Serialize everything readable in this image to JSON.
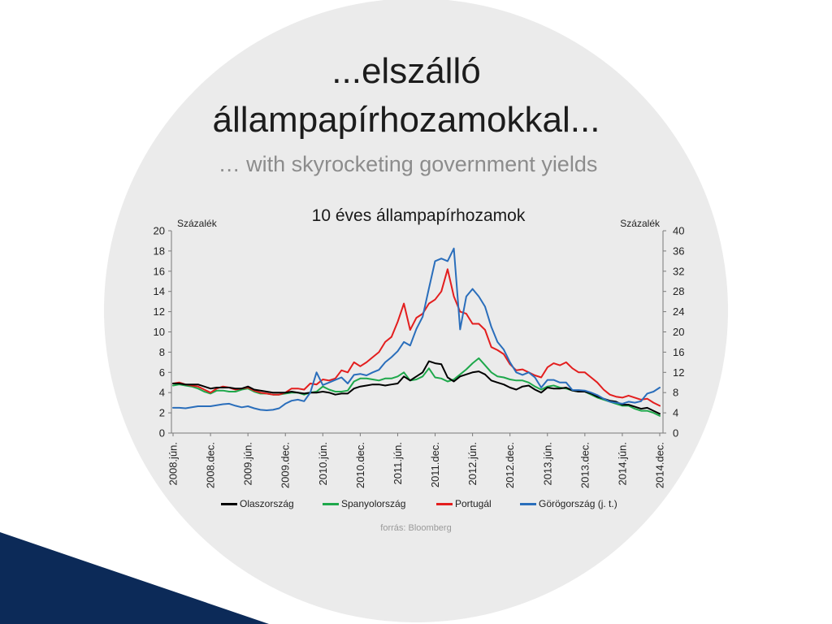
{
  "slide": {
    "title_line1": "...elszálló",
    "title_line2": "állampapírhozamokkal...",
    "subtitle": "… with skyrocketing government yields",
    "source": "forrás: Bloomberg"
  },
  "colors": {
    "background": "#ffffff",
    "circle": "#ebebeb",
    "accent": "#0c2a58"
  },
  "chart_data": {
    "type": "line",
    "title": "10 éves állampapírhozamok",
    "xlabel": "",
    "ylabel_left": "Százalék",
    "ylabel_right": "Százalék",
    "ylim_left": [
      0,
      20
    ],
    "ylim_right": [
      0,
      40
    ],
    "yticks_left": [
      0,
      2,
      4,
      6,
      8,
      10,
      12,
      14,
      16,
      18,
      20
    ],
    "yticks_right": [
      0,
      4,
      8,
      12,
      16,
      20,
      24,
      28,
      32,
      36,
      40
    ],
    "xticks": [
      "2008-06",
      "2008-12",
      "2009-06",
      "2009-12",
      "2010-06",
      "2010-12",
      "2011-06",
      "2011-12",
      "2012-06",
      "2012-12",
      "2013-06",
      "2013-12",
      "2014-06",
      "2014-12"
    ],
    "xtick_labels": [
      "2008.jún.",
      "2008.dec.",
      "2009.jún.",
      "2009.dec.",
      "2010.jún.",
      "2010.dec.",
      "2011.jún.",
      "2011.dec.",
      "2012.jún.",
      "2012.dec.",
      "2013.jún.",
      "2013.dec.",
      "2014.jún.",
      "2014.dec."
    ],
    "grid": false,
    "legend_position": "bottom",
    "x": [
      "2008-06",
      "2008-07",
      "2008-08",
      "2008-09",
      "2008-10",
      "2008-11",
      "2008-12",
      "2009-01",
      "2009-02",
      "2009-03",
      "2009-04",
      "2009-05",
      "2009-06",
      "2009-07",
      "2009-08",
      "2009-09",
      "2009-10",
      "2009-11",
      "2009-12",
      "2010-01",
      "2010-02",
      "2010-03",
      "2010-04",
      "2010-05",
      "2010-06",
      "2010-07",
      "2010-08",
      "2010-09",
      "2010-10",
      "2010-11",
      "2010-12",
      "2011-01",
      "2011-02",
      "2011-03",
      "2011-04",
      "2011-05",
      "2011-06",
      "2011-07",
      "2011-08",
      "2011-09",
      "2011-10",
      "2011-11",
      "2011-12",
      "2012-01",
      "2012-02",
      "2012-03",
      "2012-04",
      "2012-05",
      "2012-06",
      "2012-07",
      "2012-08",
      "2012-09",
      "2012-10",
      "2012-11",
      "2012-12",
      "2013-01",
      "2013-02",
      "2013-03",
      "2013-04",
      "2013-05",
      "2013-06",
      "2013-07",
      "2013-08",
      "2013-09",
      "2013-10",
      "2013-11",
      "2013-12",
      "2014-01",
      "2014-02",
      "2014-03",
      "2014-04",
      "2014-05",
      "2014-06",
      "2014-07",
      "2014-08",
      "2014-09",
      "2014-10",
      "2014-11",
      "2014-12"
    ],
    "series": [
      {
        "name": "Olaszország",
        "color": "#000000",
        "axis": "left",
        "values": [
          4.9,
          4.9,
          4.8,
          4.8,
          4.8,
          4.6,
          4.4,
          4.5,
          4.5,
          4.5,
          4.4,
          4.4,
          4.6,
          4.3,
          4.2,
          4.1,
          4.0,
          4.0,
          4.0,
          4.1,
          4.0,
          3.9,
          4.0,
          4.0,
          4.1,
          4.0,
          3.8,
          3.9,
          3.9,
          4.4,
          4.6,
          4.7,
          4.8,
          4.8,
          4.7,
          4.8,
          4.9,
          5.6,
          5.2,
          5.6,
          6.0,
          7.1,
          6.9,
          6.8,
          5.5,
          5.1,
          5.6,
          5.8,
          6.0,
          6.1,
          5.8,
          5.2,
          5.0,
          4.8,
          4.5,
          4.3,
          4.6,
          4.7,
          4.3,
          4.0,
          4.5,
          4.4,
          4.4,
          4.5,
          4.2,
          4.1,
          4.1,
          3.9,
          3.6,
          3.4,
          3.2,
          3.1,
          2.8,
          2.8,
          2.6,
          2.4,
          2.5,
          2.2,
          1.9
        ]
      },
      {
        "name": "Spanyolország",
        "color": "#1ea84b",
        "axis": "left",
        "values": [
          4.7,
          4.8,
          4.7,
          4.6,
          4.4,
          4.1,
          3.9,
          4.2,
          4.2,
          4.1,
          4.1,
          4.3,
          4.4,
          4.1,
          3.9,
          3.9,
          3.8,
          3.8,
          3.9,
          4.0,
          4.0,
          3.8,
          4.0,
          4.1,
          4.6,
          4.3,
          4.1,
          4.1,
          4.2,
          5.1,
          5.4,
          5.4,
          5.3,
          5.2,
          5.4,
          5.4,
          5.6,
          6.0,
          5.2,
          5.3,
          5.6,
          6.4,
          5.5,
          5.4,
          5.1,
          5.3,
          5.8,
          6.3,
          6.9,
          7.4,
          6.7,
          6.0,
          5.6,
          5.5,
          5.3,
          5.2,
          5.2,
          5.0,
          4.6,
          4.3,
          4.6,
          4.7,
          4.5,
          4.4,
          4.2,
          4.1,
          4.1,
          3.8,
          3.5,
          3.3,
          3.1,
          2.9,
          2.7,
          2.7,
          2.4,
          2.2,
          2.2,
          2.0,
          1.7
        ]
      },
      {
        "name": "Portugál",
        "color": "#e31e1e",
        "axis": "left",
        "values": [
          4.9,
          5.0,
          4.8,
          4.7,
          4.6,
          4.3,
          4.0,
          4.4,
          4.6,
          4.5,
          4.3,
          4.4,
          4.5,
          4.2,
          4.0,
          3.9,
          3.8,
          3.8,
          4.0,
          4.4,
          4.4,
          4.3,
          4.9,
          4.8,
          5.3,
          5.2,
          5.4,
          6.2,
          6.0,
          7.0,
          6.6,
          7.0,
          7.5,
          8.0,
          9.0,
          9.5,
          11.0,
          12.8,
          10.2,
          11.4,
          11.8,
          12.8,
          13.2,
          14.0,
          16.2,
          13.5,
          12.0,
          11.8,
          10.8,
          10.8,
          10.2,
          8.5,
          8.2,
          7.8,
          6.8,
          6.2,
          6.3,
          6.0,
          5.7,
          5.5,
          6.5,
          6.9,
          6.7,
          7.0,
          6.4,
          6.0,
          6.0,
          5.5,
          5.0,
          4.3,
          3.8,
          3.6,
          3.5,
          3.7,
          3.5,
          3.3,
          3.4,
          3.0,
          2.7
        ]
      },
      {
        "name": "Görögország (j. t.)",
        "color": "#2a6ebb",
        "axis": "right",
        "values": [
          5.0,
          5.0,
          4.9,
          5.1,
          5.3,
          5.3,
          5.3,
          5.5,
          5.7,
          5.8,
          5.4,
          5.1,
          5.3,
          4.9,
          4.6,
          4.5,
          4.6,
          4.9,
          5.8,
          6.4,
          6.6,
          6.3,
          8.0,
          12.0,
          9.5,
          10.0,
          10.5,
          11.0,
          9.8,
          11.5,
          11.7,
          11.4,
          12.0,
          12.5,
          14.0,
          15.0,
          16.2,
          18.0,
          17.3,
          20.6,
          23.0,
          28.6,
          34.0,
          34.5,
          34.0,
          36.5,
          20.5,
          27.0,
          28.5,
          27.0,
          25.0,
          21.0,
          18.0,
          16.5,
          14.0,
          12.0,
          11.5,
          12.0,
          11.0,
          9.0,
          10.5,
          10.5,
          10.0,
          10.0,
          8.5,
          8.5,
          8.4,
          8.0,
          7.5,
          6.8,
          6.2,
          6.0,
          5.8,
          6.2,
          6.0,
          6.3,
          7.8,
          8.2,
          9.0
        ]
      }
    ]
  }
}
